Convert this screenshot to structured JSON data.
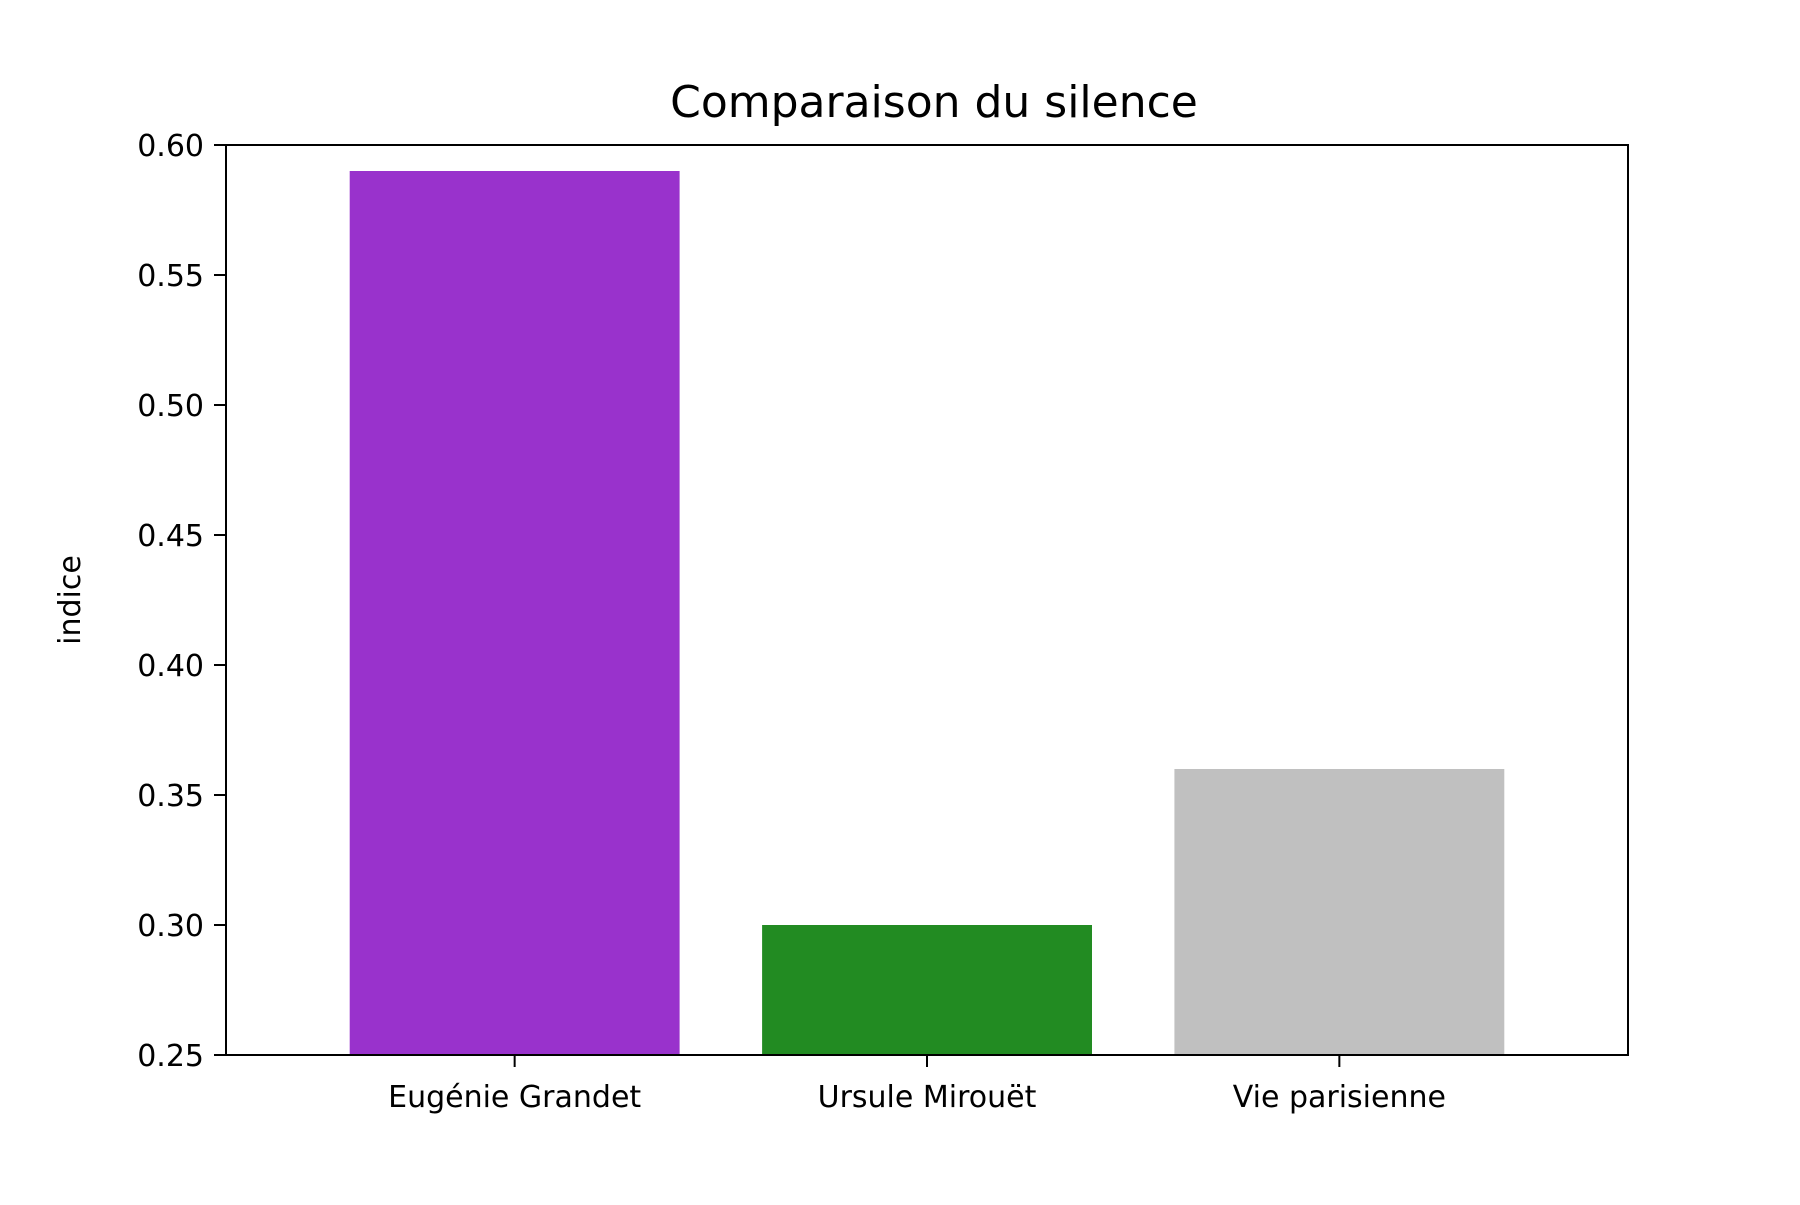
{
  "chart_data": {
    "type": "bar",
    "title": "Comparaison du silence",
    "xlabel": "",
    "ylabel": "indice",
    "categories": [
      "Eugénie Grandet",
      "Ursule Mirouët",
      "Vie parisienne"
    ],
    "values": [
      0.59,
      0.3,
      0.36
    ],
    "colors": [
      "#9932CC",
      "#228B22",
      "#C0C0C0"
    ],
    "ylim": [
      0.25,
      0.6
    ],
    "yticks": [
      "0.25",
      "0.30",
      "0.35",
      "0.40",
      "0.45",
      "0.50",
      "0.55",
      "0.60"
    ],
    "grid": false,
    "legend": "none"
  }
}
